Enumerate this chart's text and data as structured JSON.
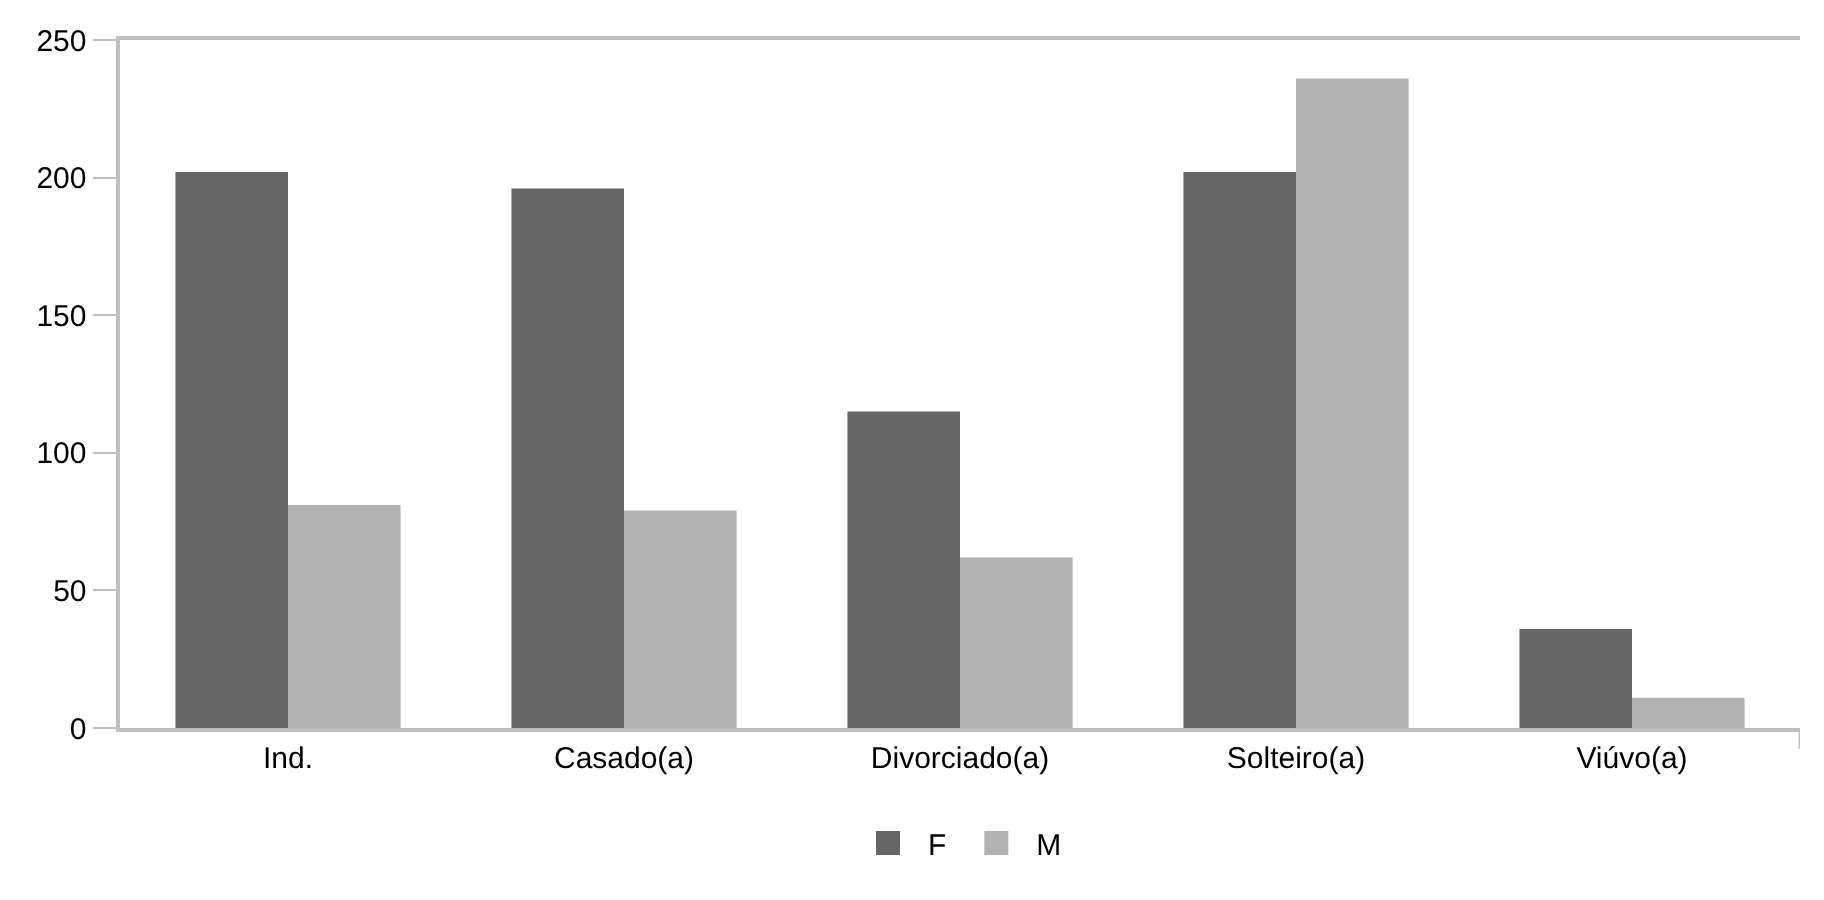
{
  "chart_data": {
    "type": "bar",
    "categories": [
      "Ind.",
      "Casado(a)",
      "Divorciado(a)",
      "Solteiro(a)",
      "Viúvo(a)"
    ],
    "series": [
      {
        "name": "F",
        "color": "#666666",
        "values": [
          202,
          196,
          115,
          202,
          36
        ]
      },
      {
        "name": "M",
        "color": "#b2b2b2",
        "values": [
          81,
          79,
          62,
          236,
          11
        ]
      }
    ],
    "ylim": [
      0,
      250
    ],
    "yticks": [
      0,
      50,
      100,
      150,
      200,
      250
    ],
    "grid": false,
    "legend": "bottom"
  }
}
